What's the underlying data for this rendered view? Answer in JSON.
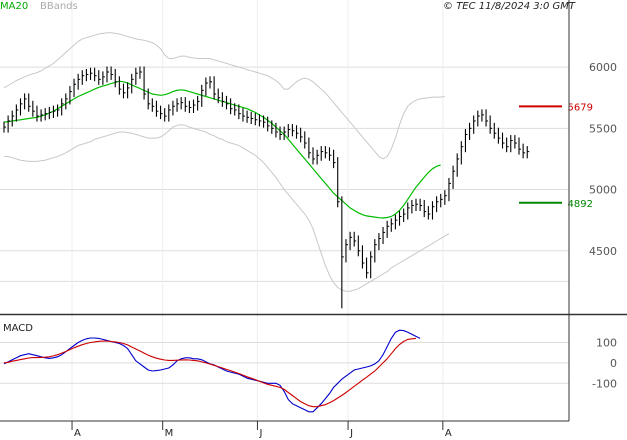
{
  "header": {
    "ma_label": "MA20",
    "bb_label": "BBands",
    "copyright": "© TEC 11/8/2024 3:0 GMT"
  },
  "colors": {
    "price": "#000000",
    "ma": "#00bb00",
    "bands": "#c8c8c8",
    "resistance": "#cc0000",
    "support": "#008800",
    "macd": "#0000cc",
    "signal": "#cc0000",
    "grid": "#dddddd",
    "frame": "#333333"
  },
  "chart_data": [
    {
      "type": "line",
      "panel": "price",
      "y_ticks": [
        4500,
        5000,
        5500,
        6000
      ],
      "y_tick_labels": [
        "4500",
        "5000",
        "5500",
        "6000"
      ],
      "ylim": [
        4000,
        6450
      ],
      "x_month_labels": [
        "A",
        "M",
        "J",
        "J",
        "A"
      ],
      "x_month_index": [
        17,
        39,
        62,
        84,
        107
      ],
      "n_bars": 128,
      "levels": [
        {
          "label": "5679",
          "value": 5679,
          "color": "#cc0000"
        },
        {
          "label": "4892",
          "value": 4892,
          "color": "#008800"
        }
      ],
      "series": [
        {
          "name": "MA20",
          "role": "ma",
          "start": 0,
          "values": [
            5550,
            5555,
            5560,
            5565,
            5570,
            5575,
            5580,
            5585,
            5590,
            5600,
            5610,
            5625,
            5640,
            5660,
            5680,
            5700,
            5720,
            5740,
            5760,
            5775,
            5790,
            5805,
            5820,
            5835,
            5845,
            5855,
            5865,
            5875,
            5885,
            5880,
            5870,
            5855,
            5840,
            5825,
            5810,
            5795,
            5780,
            5775,
            5770,
            5775,
            5785,
            5800,
            5810,
            5815,
            5810,
            5800,
            5790,
            5780,
            5770,
            5760,
            5750,
            5740,
            5730,
            5720,
            5710,
            5700,
            5690,
            5680,
            5670,
            5660,
            5645,
            5630,
            5610,
            5590,
            5565,
            5540,
            5510,
            5480,
            5450,
            5410,
            5370,
            5330,
            5290,
            5250,
            5210,
            5170,
            5130,
            5090,
            5050,
            5010,
            4970,
            4940,
            4910,
            4880,
            4850,
            4830,
            4810,
            4795,
            4785,
            4780,
            4775,
            4770,
            4768,
            4772,
            4780,
            4800,
            4830,
            4870,
            4920,
            4970,
            5020,
            5060,
            5100,
            5140,
            5170,
            5190,
            5200
          ]
        },
        {
          "name": "BBands upper",
          "role": "band",
          "start": 0,
          "values": [
            5830,
            5850,
            5870,
            5890,
            5905,
            5920,
            5935,
            5945,
            5955,
            5970,
            5990,
            6010,
            6030,
            6060,
            6090,
            6120,
            6150,
            6180,
            6210,
            6230,
            6240,
            6250,
            6260,
            6270,
            6275,
            6280,
            6280,
            6275,
            6270,
            6260,
            6250,
            6240,
            6230,
            6225,
            6220,
            6210,
            6200,
            6180,
            6150,
            6100,
            6070,
            6070,
            6080,
            6090,
            6090,
            6080,
            6075,
            6070,
            6070,
            6070,
            6070,
            6060,
            6050,
            6040,
            6030,
            6020,
            6010,
            6000,
            5990,
            5980,
            5970,
            5960,
            5950,
            5940,
            5930,
            5910,
            5890,
            5860,
            5820,
            5820,
            5850,
            5880,
            5900,
            5910,
            5900,
            5880,
            5850,
            5820,
            5790,
            5750,
            5710,
            5670,
            5630,
            5590,
            5550,
            5510,
            5470,
            5430,
            5390,
            5350,
            5310,
            5270,
            5250,
            5270,
            5330,
            5420,
            5530,
            5620,
            5680,
            5710,
            5730,
            5740,
            5745,
            5750,
            5755,
            5755,
            5755,
            5760
          ]
        },
        {
          "name": "BBands lower",
          "role": "band",
          "start": 0,
          "values": [
            5270,
            5270,
            5260,
            5250,
            5240,
            5235,
            5230,
            5230,
            5230,
            5235,
            5240,
            5250,
            5260,
            5270,
            5285,
            5300,
            5320,
            5340,
            5360,
            5370,
            5380,
            5390,
            5410,
            5420,
            5430,
            5440,
            5450,
            5460,
            5470,
            5470,
            5465,
            5460,
            5450,
            5440,
            5430,
            5420,
            5420,
            5420,
            5430,
            5450,
            5480,
            5510,
            5525,
            5530,
            5525,
            5510,
            5500,
            5490,
            5480,
            5470,
            5450,
            5440,
            5420,
            5410,
            5390,
            5380,
            5370,
            5360,
            5340,
            5320,
            5300,
            5280,
            5250,
            5220,
            5180,
            5140,
            5100,
            5050,
            5000,
            4960,
            4920,
            4880,
            4840,
            4800,
            4750,
            4680,
            4580,
            4480,
            4380,
            4300,
            4240,
            4200,
            4180,
            4170,
            4170,
            4180,
            4190,
            4210,
            4230,
            4250,
            4270,
            4290,
            4310,
            4330,
            4360,
            4380,
            4400,
            4420,
            4440,
            4460,
            4480,
            4500,
            4520,
            4540,
            4560,
            4580,
            4600,
            4620,
            4640
          ]
        },
        {
          "name": "Price",
          "role": "price",
          "start": 0,
          "values": [
            5510,
            5560,
            5600,
            5650,
            5700,
            5740,
            5680,
            5640,
            5600,
            5610,
            5620,
            5630,
            5640,
            5650,
            5700,
            5740,
            5800,
            5860,
            5900,
            5930,
            5940,
            5950,
            5930,
            5900,
            5920,
            5960,
            5940,
            5880,
            5820,
            5790,
            5830,
            5900,
            5950,
            5960,
            5780,
            5700,
            5680,
            5640,
            5620,
            5600,
            5650,
            5680,
            5700,
            5710,
            5680,
            5670,
            5690,
            5720,
            5810,
            5870,
            5880,
            5780,
            5750,
            5720,
            5700,
            5660,
            5650,
            5620,
            5600,
            5590,
            5580,
            5570,
            5560,
            5550,
            5520,
            5500,
            5470,
            5450,
            5470,
            5490,
            5480,
            5460,
            5430,
            5380,
            5300,
            5250,
            5280,
            5310,
            5300,
            5280,
            5220,
            4900,
            4450,
            4550,
            4610,
            4580,
            4500,
            4400,
            4320,
            4450,
            4550,
            4600,
            4650,
            4700,
            4720,
            4750,
            4780,
            4800,
            4850,
            4870,
            4880,
            4870,
            4820,
            4800,
            4860,
            4900,
            4920,
            4950,
            5050,
            5150,
            5250,
            5350,
            5450,
            5500,
            5560,
            5600,
            5610,
            5560,
            5500,
            5460,
            5420,
            5380,
            5350,
            5400,
            5380,
            5330,
            5300,
            5310
          ]
        }
      ]
    },
    {
      "type": "line",
      "panel": "macd",
      "title": "MACD",
      "y_ticks": [
        -100,
        0,
        100
      ],
      "y_tick_labels": [
        "-100",
        "0",
        "100"
      ],
      "ylim": [
        -280,
        220
      ],
      "series": [
        {
          "name": "MACD",
          "role": "macd",
          "start": 0,
          "values": [
            -5,
            5,
            15,
            25,
            35,
            40,
            45,
            40,
            35,
            30,
            25,
            22,
            25,
            30,
            40,
            55,
            70,
            85,
            100,
            110,
            118,
            122,
            122,
            120,
            115,
            110,
            105,
            100,
            95,
            85,
            70,
            40,
            10,
            -5,
            -20,
            -35,
            -40,
            -38,
            -35,
            -30,
            -25,
            -10,
            10,
            20,
            25,
            25,
            20,
            20,
            15,
            5,
            -5,
            -10,
            -20,
            -30,
            -40,
            -45,
            -50,
            -55,
            -65,
            -75,
            -80,
            -85,
            -90,
            -95,
            -100,
            -100,
            -100,
            -110,
            -140,
            -180,
            -200,
            -210,
            -220,
            -230,
            -240,
            -240,
            -220,
            -200,
            -175,
            -150,
            -120,
            -100,
            -80,
            -65,
            -50,
            -35,
            -30,
            -25,
            -20,
            -15,
            -5,
            10,
            40,
            80,
            120,
            150,
            160,
            158,
            150,
            140,
            130,
            120
          ]
        },
        {
          "name": "Signal",
          "role": "signal",
          "start": 0,
          "values": [
            0,
            3,
            8,
            12,
            16,
            20,
            24,
            26,
            26,
            27,
            28,
            30,
            34,
            40,
            48,
            56,
            65,
            74,
            82,
            89,
            95,
            100,
            103,
            106,
            107,
            107,
            105,
            103,
            100,
            95,
            88,
            78,
            68,
            58,
            48,
            38,
            30,
            23,
            18,
            14,
            12,
            12,
            13,
            14,
            15,
            14,
            12,
            10,
            5,
            0,
            -6,
            -12,
            -18,
            -25,
            -32,
            -38,
            -45,
            -52,
            -60,
            -68,
            -75,
            -82,
            -90,
            -98,
            -105,
            -110,
            -115,
            -120,
            -130,
            -145,
            -160,
            -175,
            -190,
            -200,
            -210,
            -215,
            -215,
            -210,
            -205,
            -195,
            -185,
            -172,
            -160,
            -145,
            -130,
            -115,
            -100,
            -85,
            -70,
            -55,
            -40,
            -20,
            0,
            20,
            45,
            70,
            90,
            105,
            115,
            118,
            120
          ]
        }
      ]
    }
  ]
}
